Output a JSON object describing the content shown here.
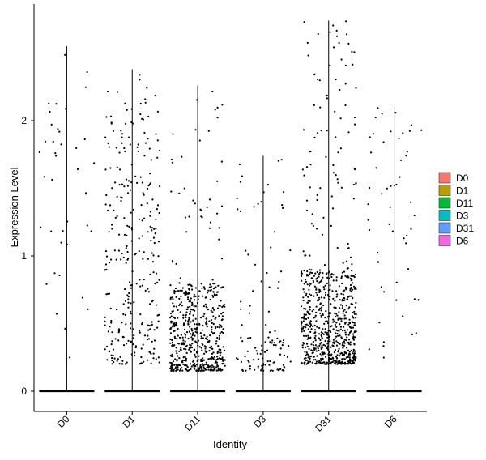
{
  "chart_data": {
    "type": "violin",
    "title": "",
    "xlabel": "Identity",
    "ylabel": "Expression Level",
    "ylim": [
      -0.07,
      2.85
    ],
    "y_ticks": [
      0,
      1,
      2
    ],
    "grid": false,
    "legend_placement": "right",
    "categories": [
      "D0",
      "D1",
      "D11",
      "D3",
      "D31",
      "D6"
    ],
    "series": [
      {
        "name": "D0",
        "color": "#F8766D",
        "max": 2.55,
        "cluster_min": 0,
        "cluster_max": 0,
        "sparse_count": 40,
        "cluster_count": 0
      },
      {
        "name": "D1",
        "color": "#B79F00",
        "max": 2.38,
        "cluster_min": 0.2,
        "cluster_max": 2.1,
        "sparse_count": 40,
        "cluster_count": 260
      },
      {
        "name": "D11",
        "color": "#00BA38",
        "max": 2.26,
        "cluster_min": 0.15,
        "cluster_max": 0.8,
        "sparse_count": 60,
        "cluster_count": 520
      },
      {
        "name": "D3",
        "color": "#00BFC4",
        "max": 1.74,
        "cluster_min": 0.15,
        "cluster_max": 0.4,
        "sparse_count": 45,
        "cluster_count": 70
      },
      {
        "name": "D31",
        "color": "#619CFF",
        "max": 2.74,
        "cluster_min": 0.2,
        "cluster_max": 0.9,
        "sparse_count": 130,
        "cluster_count": 600
      },
      {
        "name": "D6",
        "color": "#F564E3",
        "max": 2.1,
        "cluster_min": 0,
        "cluster_max": 0,
        "sparse_count": 55,
        "cluster_count": 0
      }
    ]
  }
}
